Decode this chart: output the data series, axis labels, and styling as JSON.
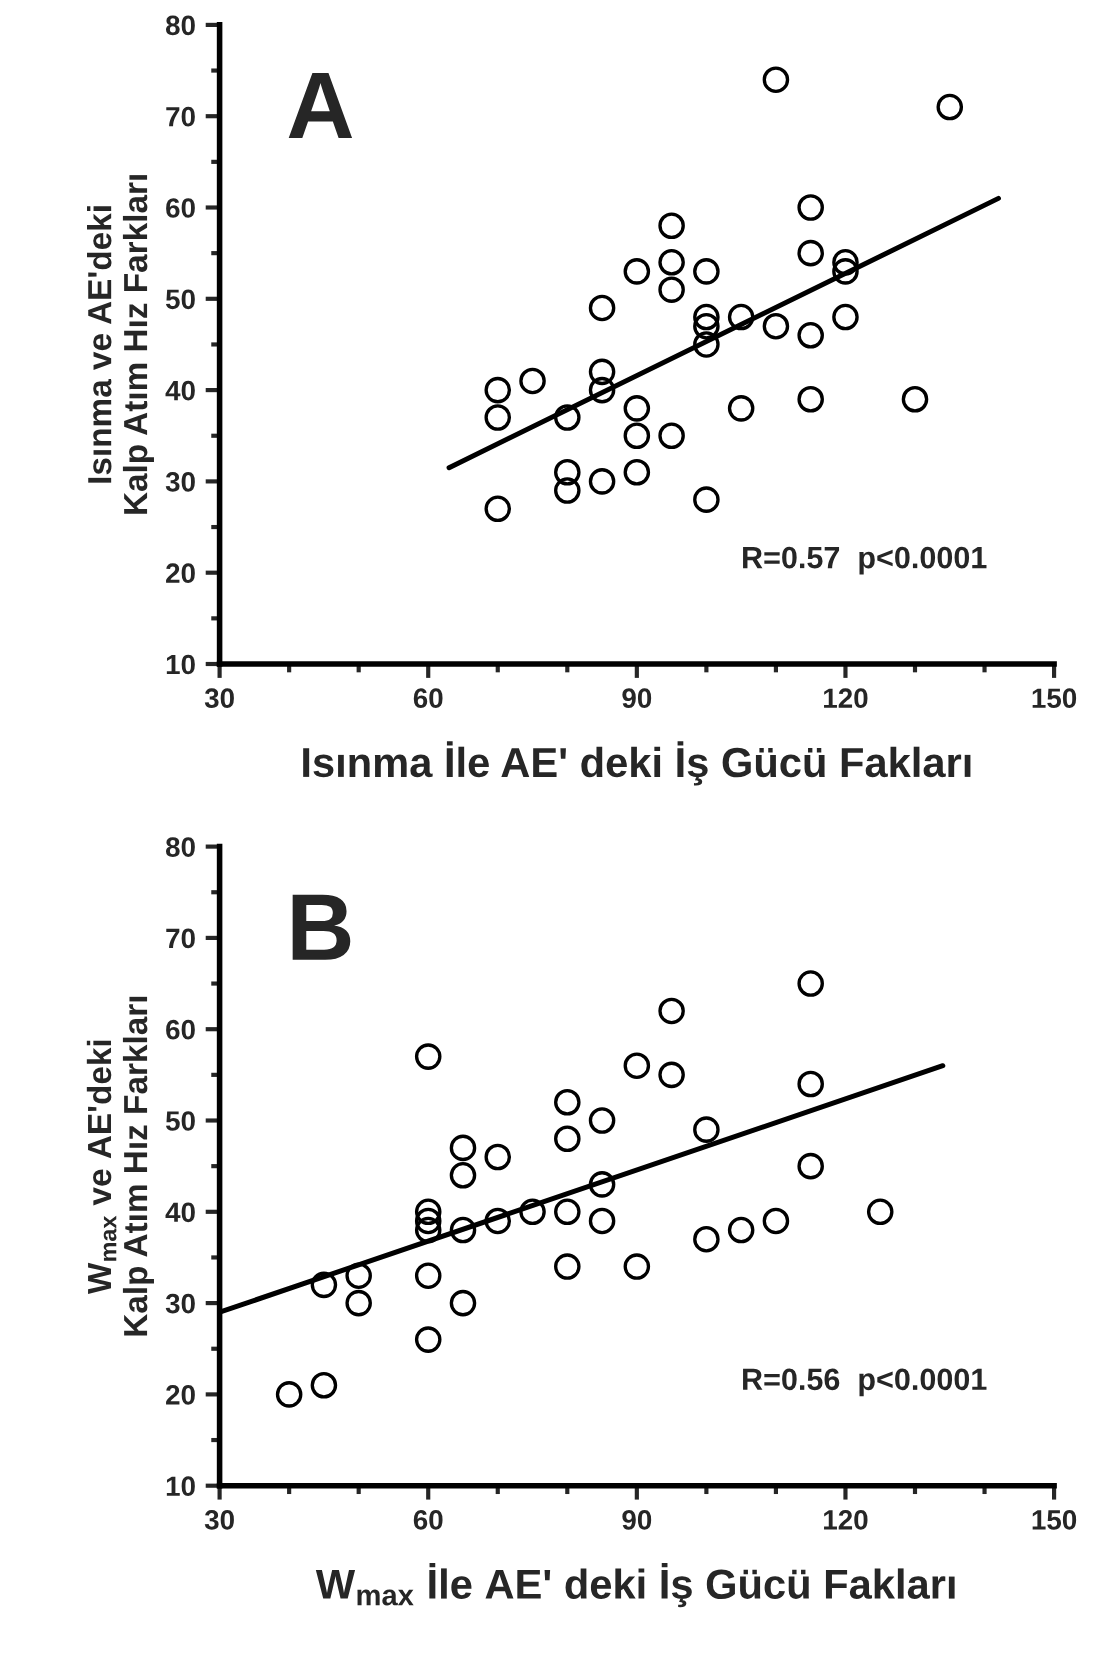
{
  "chart_data": [
    {
      "type": "scatter",
      "title": "A",
      "xlabel": "Isınma İle AE' deki İş Gücü Fakları",
      "ylabel": "Isınma ve AE'deki\nKalp Atım Hız Farkları",
      "xlim": [
        30,
        150
      ],
      "xticks": [
        30,
        60,
        90,
        120,
        150
      ],
      "ylim": [
        10,
        80
      ],
      "yticks": [
        10,
        20,
        30,
        40,
        50,
        60,
        70,
        80
      ],
      "grid": false,
      "legend": false,
      "annotations": [
        "R=0.57  p<0.0001"
      ],
      "series": [
        {
          "marker": "circle",
          "color": "#000000",
          "x": [
            70,
            70,
            70,
            75,
            80,
            80,
            80,
            85,
            85,
            85,
            85,
            90,
            90,
            90,
            90,
            95,
            95,
            95,
            95,
            100,
            100,
            100,
            100,
            100,
            105,
            105,
            110,
            110,
            115,
            115,
            115,
            115,
            120,
            120,
            120,
            130,
            135
          ],
          "values": [
            40,
            37,
            27,
            41,
            37,
            31,
            29,
            49,
            42,
            40,
            30,
            53,
            38,
            35,
            31,
            58,
            54,
            51,
            35,
            53,
            48,
            47,
            45,
            28,
            48,
            38,
            74,
            47,
            60,
            55,
            46,
            39,
            54,
            53,
            48,
            39,
            71
          ]
        },
        {
          "type": "line",
          "color": "#000000",
          "x": [
            63,
            142
          ],
          "values": [
            31.5,
            61
          ]
        }
      ]
    },
    {
      "type": "scatter",
      "title": "B",
      "xlabel": "W$_{max}$ İle AE' deki İş Gücü Fakları",
      "ylabel": "W$_{max}$ ve AE'deki\nKalp Atım Hız Farkları",
      "xlim": [
        30,
        150
      ],
      "xticks": [
        30,
        60,
        90,
        120,
        150
      ],
      "ylim": [
        10,
        80
      ],
      "yticks": [
        10,
        20,
        30,
        40,
        50,
        60,
        70,
        80
      ],
      "grid": false,
      "legend": false,
      "annotations": [
        "R=0.56  p<0.0001"
      ],
      "series": [
        {
          "marker": "circle",
          "color": "#000000",
          "x": [
            40,
            45,
            45,
            50,
            50,
            60,
            60,
            60,
            60,
            60,
            60,
            65,
            65,
            65,
            65,
            70,
            70,
            75,
            80,
            80,
            80,
            80,
            85,
            85,
            85,
            90,
            90,
            95,
            95,
            100,
            100,
            105,
            110,
            115,
            115,
            115,
            125
          ],
          "values": [
            20,
            21,
            32,
            33,
            30,
            57,
            40,
            39,
            38,
            33,
            26,
            47,
            44,
            38,
            30,
            46,
            39,
            40,
            52,
            48,
            40,
            34,
            50,
            43,
            39,
            56,
            34,
            62,
            55,
            49,
            37,
            38,
            39,
            65,
            54,
            45,
            40
          ]
        },
        {
          "type": "line",
          "color": "#000000",
          "x": [
            30,
            134
          ],
          "values": [
            29,
            56
          ]
        }
      ]
    }
  ]
}
